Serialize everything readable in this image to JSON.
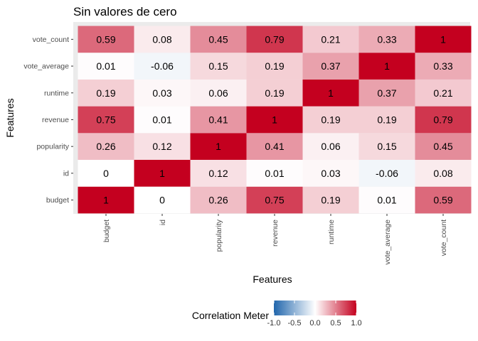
{
  "chart_data": {
    "type": "heatmap",
    "title": "Sin valores de cero",
    "xlabel": "Features",
    "ylabel": "Features",
    "x_categories": [
      "budget",
      "id",
      "popularity",
      "revenue",
      "runtime",
      "vote_average",
      "vote_count"
    ],
    "y_categories": [
      "budget",
      "id",
      "popularity",
      "revenue",
      "runtime",
      "vote_average",
      "vote_count"
    ],
    "values": [
      [
        1,
        0,
        0.26,
        0.75,
        0.19,
        0.01,
        0.59
      ],
      [
        0,
        1,
        0.12,
        0.01,
        0.03,
        -0.06,
        0.08
      ],
      [
        0.26,
        0.12,
        1,
        0.41,
        0.06,
        0.15,
        0.45
      ],
      [
        0.75,
        0.01,
        0.41,
        1,
        0.19,
        0.19,
        0.79
      ],
      [
        0.19,
        0.03,
        0.06,
        0.19,
        1,
        0.37,
        0.21
      ],
      [
        0.01,
        -0.06,
        0.15,
        0.19,
        0.37,
        1,
        0.33
      ],
      [
        0.59,
        0.08,
        0.45,
        0.79,
        0.21,
        0.33,
        1
      ]
    ],
    "value_range": [
      -1,
      1
    ],
    "legend": {
      "title": "Correlation Meter",
      "position": "bottom",
      "ticks": [
        -1.0,
        -0.5,
        0.0,
        0.5,
        1.0
      ],
      "tick_labels": [
        "-1.0",
        "-0.5",
        "0.0",
        "0.5",
        "1.0"
      ]
    },
    "colors": {
      "low": "#2166ac",
      "mid": "#ffffff",
      "high": "#c4001f",
      "panel_background": "#ebebeb"
    }
  }
}
